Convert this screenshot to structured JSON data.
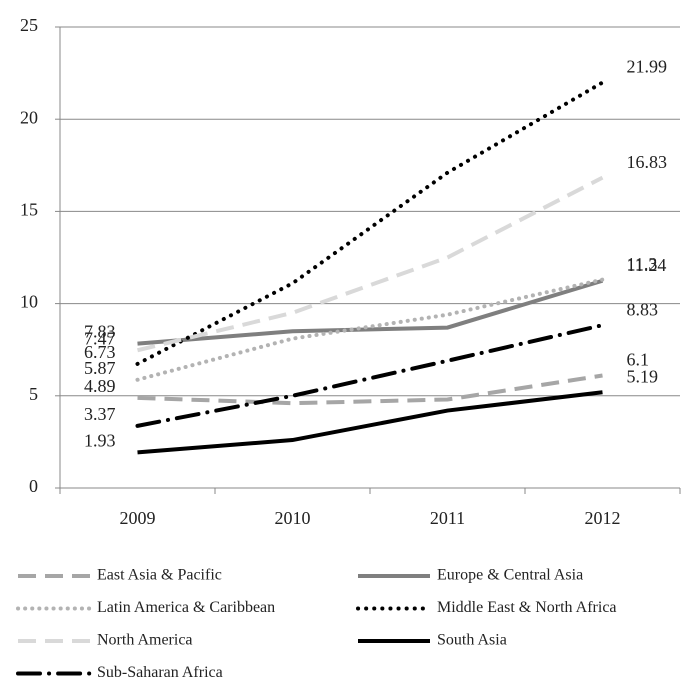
{
  "chart_data": {
    "type": "line",
    "categories": [
      "2009",
      "2010",
      "2011",
      "2012"
    ],
    "series": [
      {
        "name": "East Asia & Pacific",
        "color": "#a6a6a6",
        "values": [
          4.89,
          4.6,
          4.8,
          6.1
        ]
      },
      {
        "name": "Europe & Central Asia",
        "color": "#7f7f7f",
        "values": [
          7.83,
          8.5,
          8.7,
          11.24
        ]
      },
      {
        "name": "Latin America & Caribbean",
        "color": "#b3b3b3",
        "values": [
          5.87,
          8.1,
          9.4,
          11.3
        ]
      },
      {
        "name": "Middle East & North Africa",
        "color": "#000000",
        "values": [
          6.73,
          11.1,
          17.1,
          21.99
        ]
      },
      {
        "name": "North America",
        "color": "#d9d9d9",
        "values": [
          7.47,
          9.5,
          12.5,
          16.83
        ]
      },
      {
        "name": "South Asia",
        "color": "#000000",
        "values": [
          1.93,
          2.6,
          4.2,
          5.19
        ]
      },
      {
        "name": "Sub-Saharan Africa",
        "color": "#000000",
        "values": [
          3.37,
          5.0,
          6.9,
          8.83
        ]
      }
    ],
    "ylim": [
      0,
      25
    ],
    "yticks": [
      0,
      5,
      10,
      15,
      20,
      25
    ],
    "grid": true
  }
}
